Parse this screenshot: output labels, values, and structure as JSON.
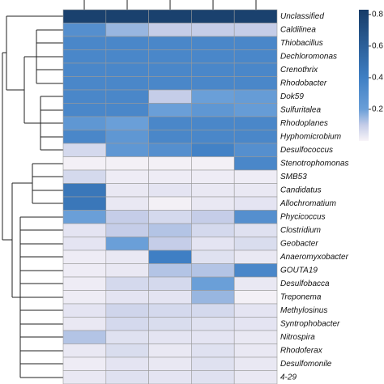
{
  "chart_data": {
    "type": "heatmap",
    "x_categories": [
      null,
      null,
      null,
      null,
      null
    ],
    "y_categories": [
      "Unclassified",
      "Caldilinea",
      "Thiobacillus",
      "Dechloromonas",
      "Crenothrix",
      "Rhodobacter",
      "Dok59",
      "Sulfuritalea",
      "Rhodoplanes",
      "Hyphomicrobium",
      "Desulfococcus",
      "Stenotrophomonas",
      "SMB53",
      "Candidatus",
      "Allochromatium",
      "Phycicoccus",
      "Clostridium",
      "Geobacter",
      "Anaeromyxobacter",
      "GOUTA19",
      "Desulfobacca",
      "Treponema",
      "Methylosinus",
      "Syntrophobacter",
      "Nitrospira",
      "Rhodoferax",
      "Desulfomonile",
      "4-29"
    ],
    "z": [
      [
        0.8,
        0.8,
        0.8,
        0.8,
        0.8
      ],
      [
        0.3,
        0.15,
        0.1,
        0.1,
        0.1
      ],
      [
        0.35,
        0.35,
        0.35,
        0.35,
        0.35
      ],
      [
        0.35,
        0.35,
        0.35,
        0.35,
        0.35
      ],
      [
        0.35,
        0.35,
        0.35,
        0.35,
        0.35
      ],
      [
        0.35,
        0.35,
        0.35,
        0.35,
        0.35
      ],
      [
        0.35,
        0.35,
        0.1,
        0.2,
        0.22
      ],
      [
        0.35,
        0.35,
        0.2,
        0.25,
        0.22
      ],
      [
        0.25,
        0.2,
        0.35,
        0.35,
        0.35
      ],
      [
        0.35,
        0.25,
        0.35,
        0.35,
        0.35
      ],
      [
        0.07,
        0.25,
        0.3,
        0.38,
        0.3
      ],
      [
        0.01,
        0.01,
        0.01,
        0.01,
        0.35
      ],
      [
        0.07,
        0.02,
        0.02,
        0.02,
        0.02
      ],
      [
        0.45,
        0.03,
        0.04,
        0.03,
        0.03
      ],
      [
        0.45,
        0.03,
        0.01,
        0.03,
        0.04
      ],
      [
        0.2,
        0.1,
        0.07,
        0.1,
        0.3
      ],
      [
        0.04,
        0.1,
        0.12,
        0.07,
        0.05
      ],
      [
        0.04,
        0.2,
        0.1,
        0.04,
        0.06
      ],
      [
        0.02,
        0.03,
        0.4,
        0.05,
        0.03
      ],
      [
        0.02,
        0.03,
        0.12,
        0.12,
        0.35
      ],
      [
        0.02,
        0.07,
        0.07,
        0.2,
        0.03
      ],
      [
        0.02,
        0.04,
        0.04,
        0.15,
        0.01
      ],
      [
        0.04,
        0.08,
        0.07,
        0.07,
        0.04
      ],
      [
        0.03,
        0.07,
        0.06,
        0.05,
        0.04
      ],
      [
        0.12,
        0.05,
        0.04,
        0.04,
        0.03
      ],
      [
        0.03,
        0.06,
        0.03,
        0.05,
        0.03
      ],
      [
        0.02,
        0.04,
        0.03,
        0.05,
        0.03
      ],
      [
        0.03,
        0.05,
        0.04,
        0.05,
        0.03
      ]
    ],
    "zlim": [
      0,
      0.83
    ],
    "zticks": [
      0.2,
      0.4,
      0.6,
      0.8
    ],
    "colorscale": [
      [
        0,
        "#f8f4f8"
      ],
      [
        0.1,
        "#c5cde8"
      ],
      [
        0.2,
        "#6a9fd8"
      ],
      [
        0.4,
        "#3f7fc4"
      ],
      [
        0.83,
        "#173c68"
      ]
    ]
  }
}
